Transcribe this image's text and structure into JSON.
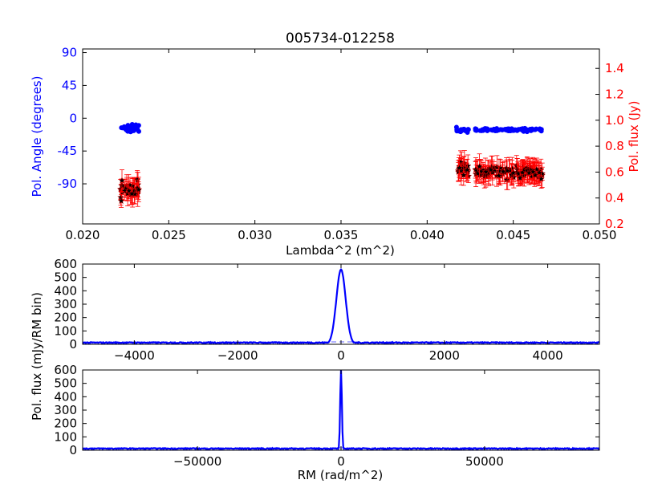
{
  "chart_data": [
    {
      "type": "scatter",
      "title": "005734-012258",
      "xlabel": "Lambda^2 (m^2)",
      "ylabel_left": "Pol. Angle (degrees)",
      "ylabel_right": "Pol. flux (Jy)",
      "xlim": [
        0.02,
        0.05
      ],
      "ylim_left": [
        -145,
        95
      ],
      "ylim_right": [
        0.2,
        1.55
      ],
      "x_ticks": [
        "0.020",
        "0.025",
        "0.030",
        "0.035",
        "0.040",
        "0.045",
        "0.050"
      ],
      "left_ticks": [
        "90",
        "45",
        "0",
        "-45",
        "-90"
      ],
      "right_ticks": [
        "0.2",
        "0.4",
        "0.6",
        "0.8",
        "1.0",
        "1.2",
        "1.4"
      ],
      "colors": {
        "angle": "#0000ff",
        "flux_marker": "#000000",
        "flux_error": "#ff0000"
      },
      "series": [
        {
          "kind": "angle",
          "clusters": [
            {
              "x_range": [
                0.0222,
                0.0233
              ],
              "mean": -15,
              "spread": 7
            },
            {
              "x_range": [
                0.0417,
                0.0424
              ],
              "mean": -16,
              "spread": 3
            },
            {
              "x_range": [
                0.0428,
                0.0467
              ],
              "mean": -16,
              "spread": 2
            }
          ]
        },
        {
          "kind": "flux",
          "clusters": [
            {
              "x_range": [
                0.0222,
                0.0233
              ],
              "mean": 0.46,
              "spread": 0.06
            },
            {
              "x_range": [
                0.0417,
                0.0424
              ],
              "mean": 0.62,
              "spread": 0.05
            },
            {
              "x_range": [
                0.0428,
                0.0467
              ],
              "mean": 0.6,
              "spread": 0.04
            }
          ]
        }
      ]
    },
    {
      "type": "line",
      "ylabel": "Pol. flux (mJy/RM bin)",
      "xlim": [
        -5000,
        5000
      ],
      "ylim": [
        0,
        600
      ],
      "x_ticks": [
        "−4000",
        "−2000",
        "0",
        "2000",
        "4000"
      ],
      "y_ticks": [
        "0",
        "100",
        "200",
        "300",
        "400",
        "500",
        "600"
      ],
      "peak": {
        "x": 0,
        "y": 560,
        "width": 90
      },
      "baseline": 12,
      "color": "#0000ff"
    },
    {
      "type": "line",
      "xlabel": "RM (rad/m^2)",
      "xlim": [
        -90000,
        90000
      ],
      "ylim": [
        0,
        600
      ],
      "x_ticks": [
        "−50000",
        "0",
        "50000"
      ],
      "y_ticks": [
        "0",
        "100",
        "200",
        "300",
        "400",
        "500",
        "600"
      ],
      "peak": {
        "x": 0,
        "y": 600,
        "width": 300
      },
      "baseline": 12,
      "color": "#0000ff"
    }
  ],
  "shared_ylabel": "Pol. flux (mJy/RM bin)"
}
